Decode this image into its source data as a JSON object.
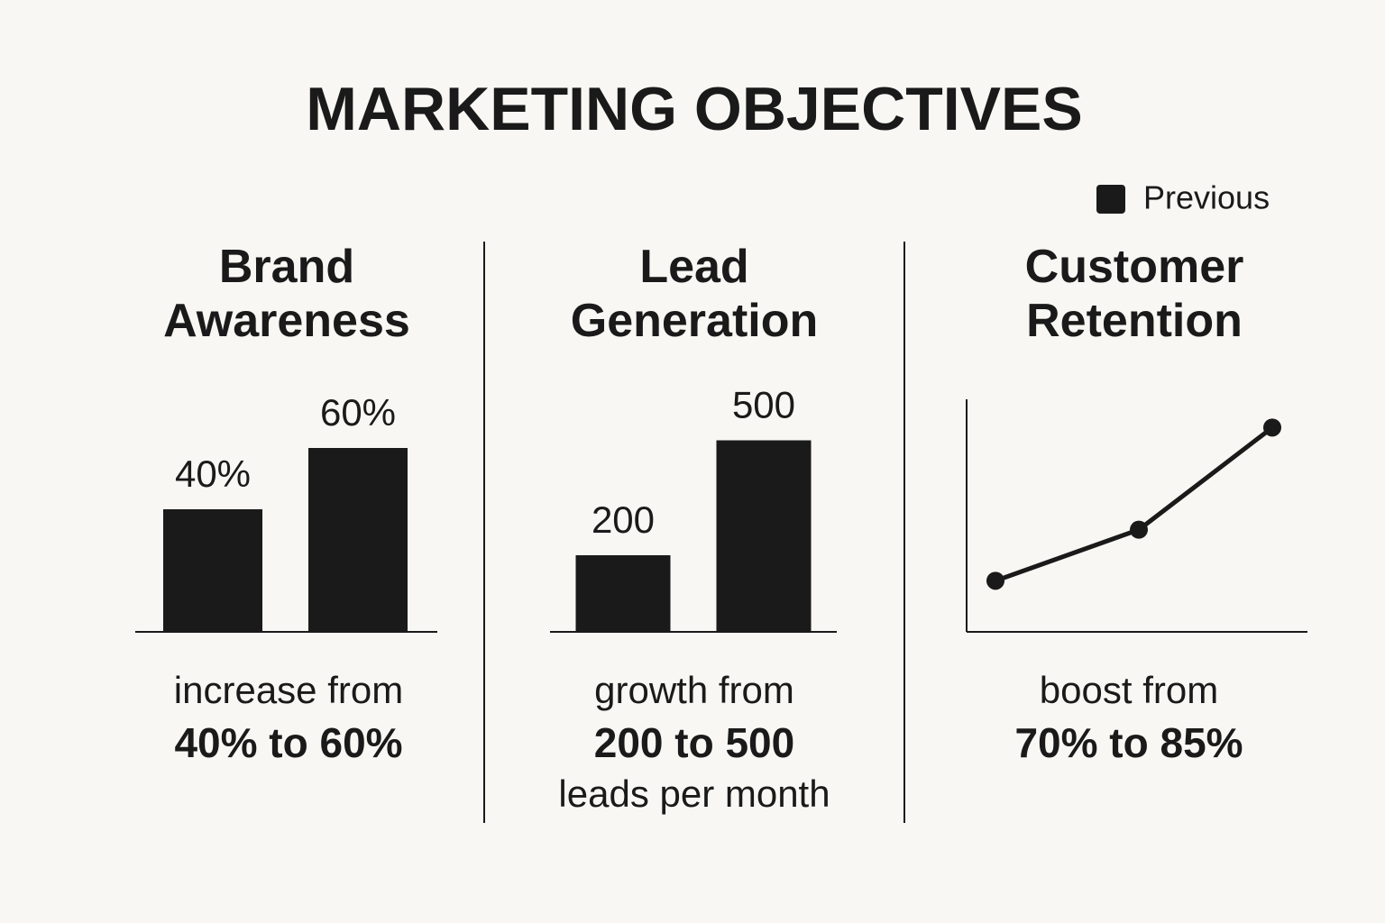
{
  "title": "MARKETING OBJECTIVES",
  "legend": {
    "label": "Previous",
    "color": "#1a1a1a"
  },
  "chart_data": [
    {
      "type": "bar",
      "title": "Brand Awareness",
      "categories": [
        null,
        null
      ],
      "values": [
        40,
        60
      ],
      "value_labels": [
        "40%",
        "60%"
      ],
      "color": "#1a1a1a",
      "ylim": [
        0,
        75
      ],
      "caption": {
        "lead": "increase from",
        "highlight": "40% to 60%"
      }
    },
    {
      "type": "bar",
      "title": "Lead Generation",
      "categories": [
        null,
        null
      ],
      "values": [
        200,
        500
      ],
      "color": "#1a1a1a",
      "ylim": [
        0,
        600
      ],
      "caption": {
        "lead": "growth from",
        "highlight": "200 to 500",
        "tail": "leads per month"
      }
    },
    {
      "type": "line",
      "title": "Customer Retention",
      "categories": [
        null,
        null,
        null
      ],
      "values": [
        70,
        75,
        85
      ],
      "color": "#1a1a1a",
      "ylim": [
        65,
        87.5
      ],
      "caption": {
        "lead": "boost from",
        "highlight": "70% to 85%"
      }
    }
  ]
}
